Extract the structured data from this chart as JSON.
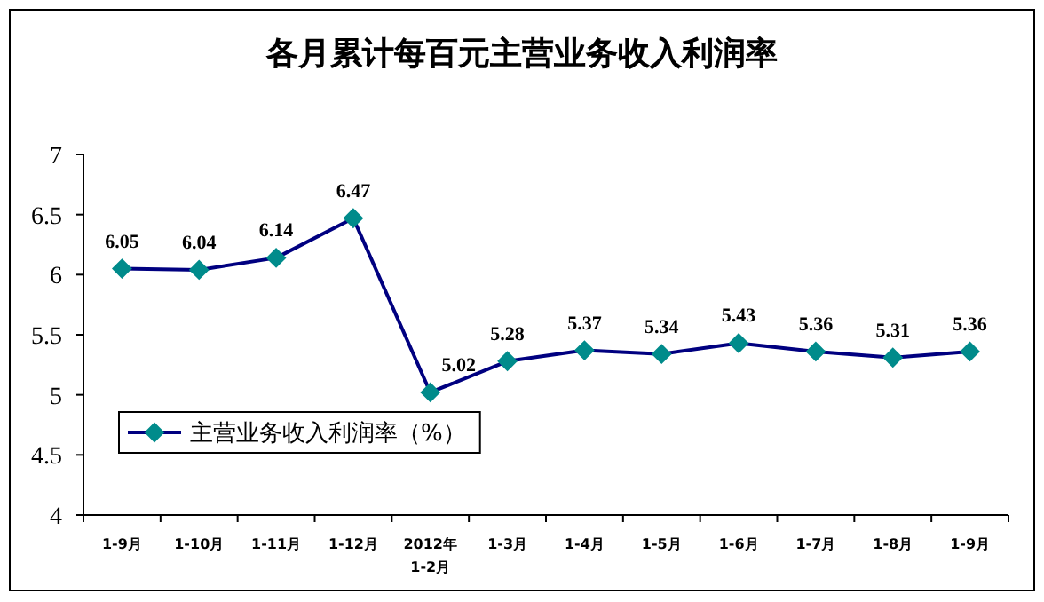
{
  "chart_data": {
    "type": "line",
    "title": "各月累计每百元主营业务收入利润率",
    "categories": [
      "1-9月",
      "1-10月",
      "1-11月",
      "1-12月",
      "2012年 1-2月",
      "1-3月",
      "1-4月",
      "1-5月",
      "1-6月",
      "1-7月",
      "1-8月",
      "1-9月"
    ],
    "series": [
      {
        "name": "主营业务收入利润率（%）",
        "color": "#000080",
        "values": [
          6.05,
          6.04,
          6.14,
          6.47,
          5.02,
          5.28,
          5.37,
          5.34,
          5.43,
          5.36,
          5.31,
          5.36
        ]
      }
    ],
    "ylim": [
      4,
      7
    ],
    "yticks": [
      4,
      4.5,
      5,
      5.5,
      6,
      6.5,
      7
    ],
    "marker": "diamond",
    "data_labels": true,
    "legend": "left",
    "grid": false
  }
}
